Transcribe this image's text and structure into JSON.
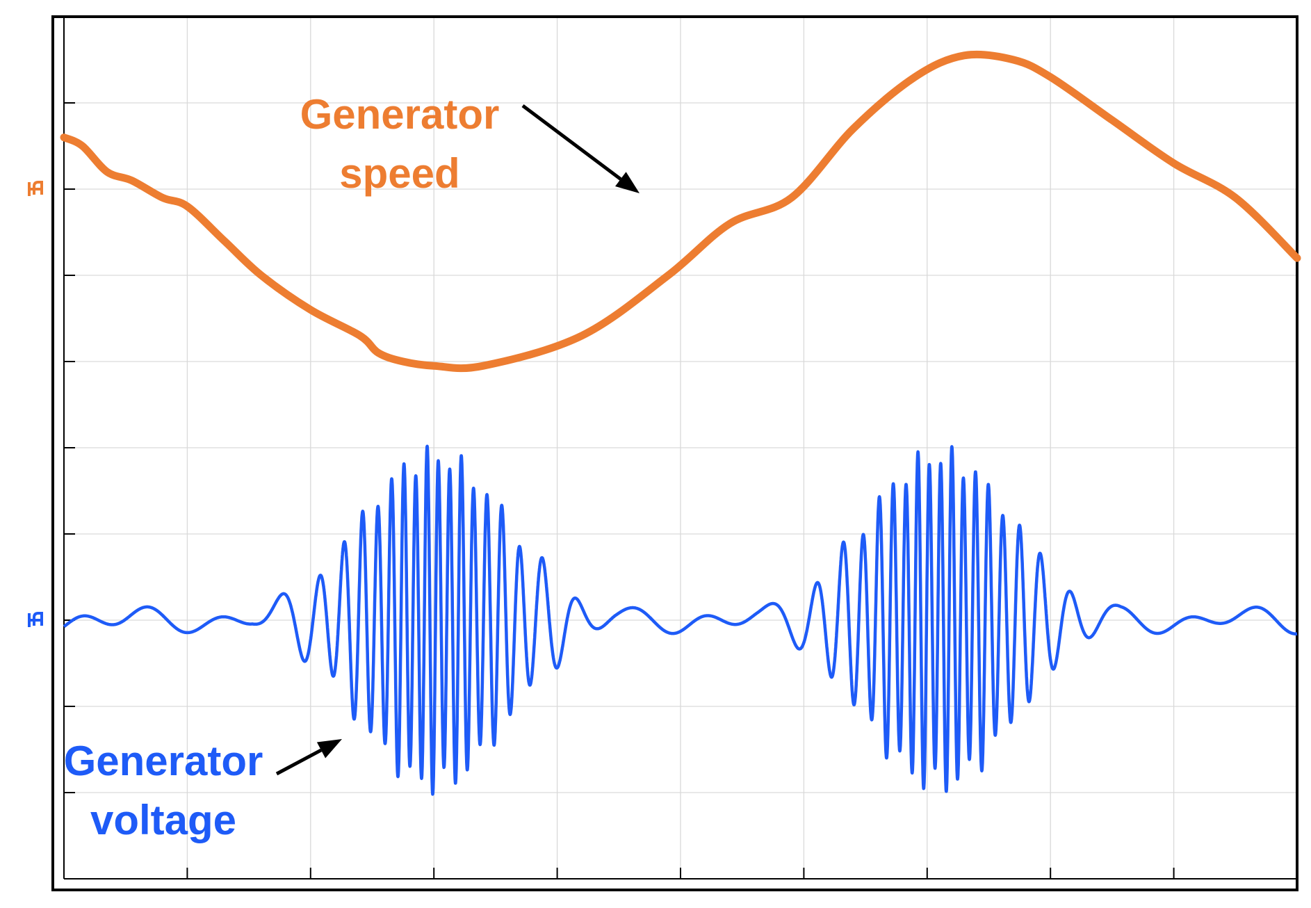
{
  "chart_data": {
    "type": "line",
    "title": "",
    "xlabel": "",
    "ylabel": "",
    "x_divisions": 10,
    "y_divisions": 10,
    "grid": true,
    "legend": "none",
    "series": [
      {
        "name": "Generator speed",
        "color": "#ED7D31",
        "ground_marker_level_div": 8,
        "x_div": [
          0,
          0.15,
          0.35,
          0.55,
          0.8,
          1.0,
          1.3,
          1.6,
          2.0,
          2.4,
          2.55,
          2.75,
          3.0,
          3.4,
          4.2,
          4.9,
          5.4,
          5.9,
          6.4,
          6.9,
          7.3,
          7.7,
          8.0,
          8.5,
          9.0,
          9.5,
          10.0
        ],
        "y_div": [
          8.6,
          8.5,
          8.2,
          8.1,
          7.9,
          7.8,
          7.4,
          7.0,
          6.6,
          6.3,
          6.1,
          6.0,
          5.95,
          5.95,
          6.3,
          7.0,
          7.6,
          7.9,
          8.7,
          9.3,
          9.55,
          9.5,
          9.3,
          8.8,
          8.3,
          7.9,
          7.2
        ]
      },
      {
        "name": "Generator voltage",
        "color": "#1E5BF7",
        "ground_marker_level_div": 3,
        "signal": "amplitude-modulated oscillation, two bursts",
        "burst_centers_x_div": [
          3.0,
          7.1
        ],
        "peak_amplitude_div": 2.05,
        "cycles_per_div_at_peak": 11
      }
    ],
    "annotations": [
      {
        "name": "speed-label",
        "lines": [
          "Generator",
          "speed"
        ],
        "color": "#ED7D31",
        "arrow": true
      },
      {
        "name": "voltage-label",
        "lines": [
          "Generator",
          "voltage"
        ],
        "color": "#1E5BF7",
        "arrow": true
      }
    ]
  },
  "colors": {
    "axis": "#000000",
    "grid": "#D9D9D9",
    "speed": "#ED7D31",
    "voltage": "#1E5BF7"
  }
}
